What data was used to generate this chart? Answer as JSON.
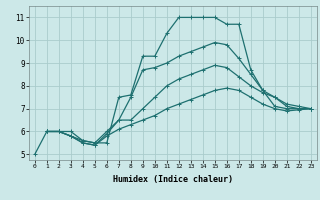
{
  "xlabel": "Humidex (Indice chaleur)",
  "bg_color": "#cce8e8",
  "grid_color": "#aacccc",
  "line_color": "#1e7070",
  "xlim": [
    -0.5,
    23.5
  ],
  "ylim": [
    4.75,
    11.5
  ],
  "xticks": [
    0,
    1,
    2,
    3,
    4,
    5,
    6,
    7,
    8,
    9,
    10,
    11,
    12,
    13,
    14,
    15,
    16,
    17,
    18,
    19,
    20,
    21,
    22,
    23
  ],
  "yticks": [
    5,
    6,
    7,
    8,
    9,
    10,
    11
  ],
  "curve1_x": [
    0,
    1,
    2,
    3,
    4,
    5,
    6,
    7,
    8,
    9,
    10,
    11,
    12,
    13,
    14,
    15,
    16,
    17,
    18,
    19,
    20,
    21,
    22,
    23
  ],
  "curve1_y": [
    5.0,
    6.0,
    6.0,
    5.8,
    5.6,
    5.5,
    5.5,
    7.5,
    7.6,
    9.3,
    9.3,
    10.3,
    11.0,
    11.0,
    11.0,
    11.0,
    10.7,
    10.7,
    8.7,
    7.8,
    7.1,
    7.0,
    7.0,
    7.0
  ],
  "curve2_x": [
    1,
    2,
    3,
    4,
    5,
    6,
    7,
    8,
    9,
    10,
    11,
    12,
    13,
    14,
    15,
    16,
    17,
    18,
    19,
    20,
    21,
    22,
    23
  ],
  "curve2_y": [
    6.0,
    6.0,
    6.0,
    5.6,
    5.5,
    6.0,
    6.5,
    7.5,
    8.7,
    8.8,
    9.0,
    9.3,
    9.5,
    9.7,
    9.9,
    9.8,
    9.2,
    8.5,
    7.8,
    7.5,
    7.2,
    7.1,
    7.0
  ],
  "curve3_x": [
    1,
    2,
    3,
    4,
    5,
    6,
    7,
    8,
    9,
    10,
    11,
    12,
    13,
    14,
    15,
    16,
    17,
    18,
    19,
    20,
    21,
    22,
    23
  ],
  "curve3_y": [
    6.0,
    6.0,
    5.8,
    5.5,
    5.4,
    5.9,
    6.5,
    6.5,
    7.0,
    7.5,
    8.0,
    8.3,
    8.5,
    8.7,
    8.9,
    8.8,
    8.4,
    8.0,
    7.7,
    7.5,
    7.1,
    7.0,
    7.0
  ],
  "curve4_x": [
    1,
    2,
    3,
    4,
    5,
    6,
    7,
    8,
    9,
    10,
    11,
    12,
    13,
    14,
    15,
    16,
    17,
    18,
    19,
    20,
    21,
    22,
    23
  ],
  "curve4_y": [
    6.0,
    6.0,
    5.8,
    5.5,
    5.4,
    5.8,
    6.1,
    6.3,
    6.5,
    6.7,
    7.0,
    7.2,
    7.4,
    7.6,
    7.8,
    7.9,
    7.8,
    7.5,
    7.2,
    7.0,
    6.9,
    6.95,
    7.0
  ]
}
